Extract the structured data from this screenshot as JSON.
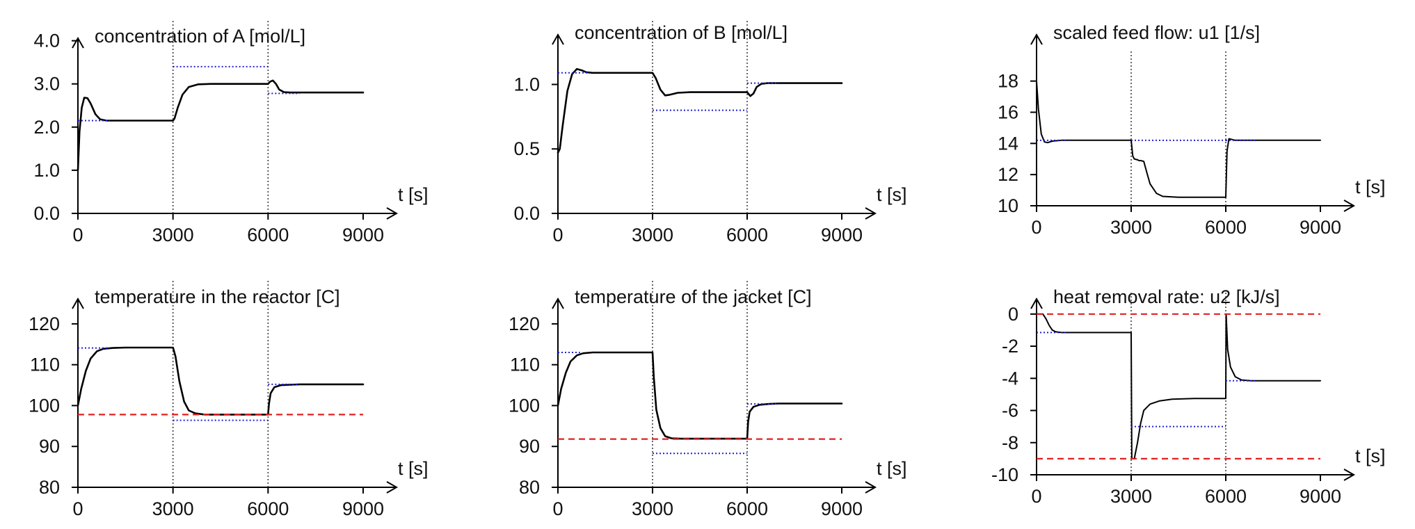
{
  "chart_data": [
    {
      "type": "line",
      "title": "concentration of A [mol/L]",
      "xlabel": "t [s]",
      "xlim": [
        0,
        9000
      ],
      "ylim": [
        0,
        4.3
      ],
      "xticks": [
        0,
        3000,
        6000,
        9000
      ],
      "xtick_labels": [
        "0",
        "3000",
        "6000",
        "9000"
      ],
      "yticks": [
        0,
        1,
        2,
        3,
        4
      ],
      "ytick_labels": [
        "0.0",
        "1.0",
        "2.0",
        "3.0",
        "4.0"
      ],
      "vlines": [
        3000,
        6000
      ],
      "colors": {
        "response": "#000000",
        "setpoint": "#1f1fd1",
        "constraint": "#e02020",
        "switch": "#333333"
      },
      "series": [
        {
          "role": "response",
          "x": [
            0,
            50,
            120,
            200,
            300,
            400,
            550,
            700,
            900,
            1200,
            3000,
            3050,
            3150,
            3300,
            3500,
            3800,
            4200,
            6000,
            6060,
            6150,
            6250,
            6350,
            6500,
            6700,
            7000,
            9000
          ],
          "y": [
            1.0,
            1.9,
            2.45,
            2.68,
            2.67,
            2.55,
            2.3,
            2.18,
            2.15,
            2.15,
            2.15,
            2.2,
            2.45,
            2.75,
            2.93,
            2.99,
            3.0,
            3.0,
            3.05,
            3.08,
            3.0,
            2.87,
            2.81,
            2.8,
            2.8,
            2.8
          ]
        },
        {
          "role": "setpoint",
          "segments": [
            {
              "x": [
                0,
                1000
              ],
              "y": [
                2.15,
                2.15
              ]
            },
            {
              "x": [
                3000,
                6000
              ],
              "y": [
                3.4,
                3.4
              ]
            },
            {
              "x": [
                6000,
                7000
              ],
              "y": [
                2.78,
                2.78
              ]
            }
          ]
        }
      ]
    },
    {
      "type": "line",
      "title": "concentration of B [mol/L]",
      "xlabel": "t [s]",
      "xlim": [
        0,
        9000
      ],
      "ylim": [
        0,
        1.45
      ],
      "xticks": [
        0,
        3000,
        6000,
        9000
      ],
      "xtick_labels": [
        "0",
        "3000",
        "6000",
        "9000"
      ],
      "yticks": [
        0,
        0.5,
        1.0
      ],
      "ytick_labels": [
        "0.0",
        "0.5",
        "1.0"
      ],
      "vlines": [
        3000,
        6000
      ],
      "colors": {
        "response": "#000000",
        "setpoint": "#1f1fd1",
        "constraint": "#e02020",
        "switch": "#333333"
      },
      "series": [
        {
          "role": "response",
          "x": [
            0,
            60,
            150,
            300,
            450,
            600,
            750,
            900,
            1100,
            1500,
            3000,
            3100,
            3250,
            3400,
            3550,
            3800,
            4200,
            6000,
            6100,
            6200,
            6300,
            6450,
            6650,
            7000,
            9000
          ],
          "y": [
            0.47,
            0.5,
            0.68,
            0.95,
            1.08,
            1.12,
            1.11,
            1.095,
            1.09,
            1.09,
            1.09,
            1.05,
            0.96,
            0.915,
            0.92,
            0.935,
            0.94,
            0.94,
            0.91,
            0.93,
            0.98,
            1.005,
            1.01,
            1.01,
            1.01
          ]
        },
        {
          "role": "setpoint",
          "segments": [
            {
              "x": [
                0,
                1000
              ],
              "y": [
                1.09,
                1.09
              ]
            },
            {
              "x": [
                3000,
                6000
              ],
              "y": [
                0.8,
                0.8
              ]
            },
            {
              "x": [
                6000,
                7000
              ],
              "y": [
                1.01,
                1.01
              ]
            }
          ]
        }
      ]
    },
    {
      "type": "line",
      "title": "scaled feed flow: u1 [1/s]",
      "xlabel": "t [s]",
      "xlim": [
        0,
        9000
      ],
      "ylim": [
        10,
        19.5
      ],
      "xticks": [
        0,
        3000,
        6000,
        9000
      ],
      "xtick_labels": [
        "0",
        "3000",
        "6000",
        "9000"
      ],
      "yticks": [
        10,
        12,
        14,
        16,
        18
      ],
      "ytick_labels": [
        "10",
        "12",
        "14",
        "16",
        "18"
      ],
      "vlines": [
        3000,
        6000
      ],
      "colors": {
        "response": "#000000",
        "setpoint": "#1f1fd1",
        "constraint": "#e02020",
        "switch": "#333333"
      },
      "series": [
        {
          "role": "response",
          "x": [
            0,
            60,
            150,
            250,
            350,
            500,
            800,
            3000,
            3050,
            3100,
            3200,
            3250,
            3300,
            3400,
            3500,
            3600,
            3800,
            4000,
            4500,
            6000,
            6040,
            6100,
            6200,
            6300,
            6500,
            7000,
            9000
          ],
          "y": [
            18.0,
            16.2,
            14.6,
            14.1,
            14.05,
            14.15,
            14.2,
            14.2,
            13.2,
            13.0,
            12.95,
            12.9,
            12.9,
            12.85,
            12.1,
            11.4,
            10.8,
            10.6,
            10.55,
            10.55,
            13.5,
            14.3,
            14.25,
            14.2,
            14.2,
            14.2,
            14.2
          ]
        },
        {
          "role": "setpoint",
          "segments": [
            {
              "x": [
                0,
                1000
              ],
              "y": [
                14.2,
                14.2
              ]
            },
            {
              "x": [
                3000,
                6000
              ],
              "y": [
                14.2,
                14.2
              ]
            },
            {
              "x": [
                6000,
                7000
              ],
              "y": [
                14.2,
                14.2
              ]
            }
          ]
        }
      ]
    },
    {
      "type": "line",
      "title": "temperature in the reactor [C]",
      "xlabel": "t [s]",
      "xlim": [
        0,
        9000
      ],
      "ylim": [
        80,
        129
      ],
      "xticks": [
        0,
        3000,
        6000,
        9000
      ],
      "xtick_labels": [
        "0",
        "3000",
        "6000",
        "9000"
      ],
      "yticks": [
        80,
        90,
        100,
        110,
        120
      ],
      "ytick_labels": [
        "80",
        "90",
        "100",
        "110",
        "120"
      ],
      "vlines": [
        3000,
        6000
      ],
      "colors": {
        "response": "#000000",
        "setpoint": "#1f1fd1",
        "constraint": "#e02020",
        "switch": "#333333"
      },
      "series": [
        {
          "role": "response",
          "x": [
            0,
            100,
            250,
            400,
            600,
            800,
            1100,
            1500,
            3000,
            3080,
            3200,
            3350,
            3500,
            3700,
            4000,
            4500,
            6000,
            6030,
            6080,
            6200,
            6400,
            6700,
            7000,
            9000
          ],
          "y": [
            100,
            104,
            108.5,
            111.5,
            113.3,
            113.9,
            114.1,
            114.2,
            114.2,
            112,
            106,
            101,
            98.8,
            98.1,
            97.8,
            97.8,
            97.8,
            100.5,
            103,
            104.5,
            105,
            105.1,
            105.2,
            105.2
          ]
        },
        {
          "role": "setpoint",
          "segments": [
            {
              "x": [
                0,
                1000
              ],
              "y": [
                114.1,
                114.1
              ]
            },
            {
              "x": [
                3000,
                6000
              ],
              "y": [
                96.4,
                96.4
              ]
            },
            {
              "x": [
                6000,
                7000
              ],
              "y": [
                105.2,
                105.2
              ]
            }
          ]
        },
        {
          "role": "constraint",
          "segments": [
            {
              "x": [
                0,
                9000
              ],
              "y": [
                97.8,
                97.8
              ]
            }
          ]
        }
      ]
    },
    {
      "type": "line",
      "title": "temperature of the jacket [C]",
      "xlabel": "t [s]",
      "xlim": [
        0,
        9000
      ],
      "ylim": [
        80,
        129
      ],
      "xticks": [
        0,
        3000,
        6000,
        9000
      ],
      "xtick_labels": [
        "0",
        "3000",
        "6000",
        "9000"
      ],
      "yticks": [
        80,
        90,
        100,
        110,
        120
      ],
      "ytick_labels": [
        "80",
        "90",
        "100",
        "110",
        "120"
      ],
      "vlines": [
        3000,
        6000
      ],
      "colors": {
        "response": "#000000",
        "setpoint": "#1f1fd1",
        "constraint": "#e02020",
        "switch": "#333333"
      },
      "series": [
        {
          "role": "response",
          "x": [
            0,
            100,
            250,
            400,
            600,
            800,
            1100,
            1500,
            3000,
            3040,
            3120,
            3250,
            3400,
            3600,
            3900,
            4500,
            6000,
            6030,
            6080,
            6200,
            6400,
            6700,
            7000,
            9000
          ],
          "y": [
            100,
            104,
            108,
            110.8,
            112.3,
            112.8,
            113,
            113,
            113,
            107,
            99,
            94.5,
            92.5,
            92,
            91.9,
            91.9,
            91.9,
            96,
            98.5,
            99.7,
            100.2,
            100.4,
            100.5,
            100.5
          ]
        },
        {
          "role": "setpoint",
          "segments": [
            {
              "x": [
                0,
                700
              ],
              "y": [
                113,
                113
              ]
            },
            {
              "x": [
                3000,
                6000
              ],
              "y": [
                88.3,
                88.3
              ]
            },
            {
              "x": [
                6000,
                7000
              ],
              "y": [
                100.4,
                100.4
              ]
            }
          ]
        },
        {
          "role": "constraint",
          "segments": [
            {
              "x": [
                0,
                9000
              ],
              "y": [
                91.8,
                91.8
              ]
            }
          ]
        }
      ]
    },
    {
      "type": "line",
      "title": "heat removal rate: u2 [kJ/s]",
      "xlabel": "t [s]",
      "xlim": [
        0,
        9000
      ],
      "ylim": [
        -10,
        0.9
      ],
      "xticks": [
        0,
        3000,
        6000,
        9000
      ],
      "xtick_labels": [
        "0",
        "3000",
        "6000",
        "9000"
      ],
      "yticks": [
        -10,
        -8,
        -6,
        -4,
        -2,
        0
      ],
      "ytick_labels": [
        "-10",
        "-8",
        "-6",
        "-4",
        "-2",
        "0"
      ],
      "vlines": [
        3000,
        6000
      ],
      "colors": {
        "response": "#000000",
        "setpoint": "#1f1fd1",
        "constraint": "#e02020",
        "switch": "#333333"
      },
      "series": [
        {
          "role": "response",
          "x": [
            0,
            200,
            300,
            400,
            500,
            600,
            800,
            1000,
            3000,
            3020,
            3100,
            3200,
            3300,
            3400,
            3600,
            3900,
            4300,
            5000,
            6000,
            6010,
            6060,
            6150,
            6300,
            6500,
            6800,
            7000,
            9000
          ],
          "y": [
            0,
            0,
            -0.3,
            -0.7,
            -1.0,
            -1.1,
            -1.15,
            -1.15,
            -1.15,
            -9.0,
            -9.0,
            -8.0,
            -6.8,
            -6.0,
            -5.6,
            -5.4,
            -5.3,
            -5.25,
            -5.25,
            0,
            -2.2,
            -3.3,
            -3.9,
            -4.1,
            -4.15,
            -4.15,
            -4.15
          ]
        },
        {
          "role": "setpoint",
          "segments": [
            {
              "x": [
                0,
                1000
              ],
              "y": [
                -1.15,
                -1.15
              ]
            },
            {
              "x": [
                3000,
                6000
              ],
              "y": [
                -7.0,
                -7.0
              ]
            },
            {
              "x": [
                6000,
                7000
              ],
              "y": [
                -4.15,
                -4.15
              ]
            }
          ]
        },
        {
          "role": "constraint",
          "segments": [
            {
              "x": [
                0,
                9000
              ],
              "y": [
                0,
                0
              ]
            },
            {
              "x": [
                0,
                9000
              ],
              "y": [
                -9,
                -9
              ]
            }
          ]
        }
      ]
    }
  ]
}
